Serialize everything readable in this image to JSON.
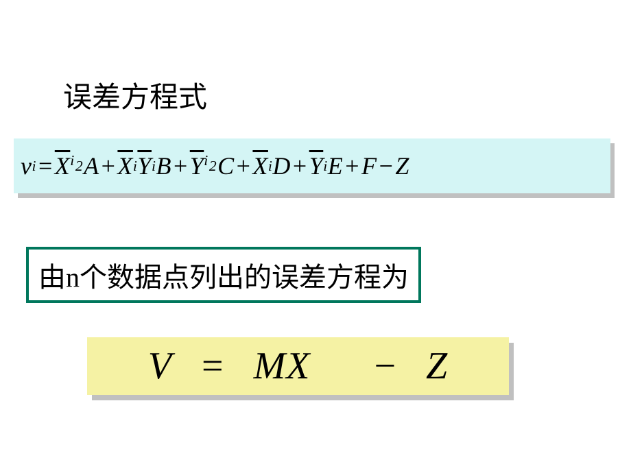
{
  "title": "误差方程式",
  "eq1": {
    "box_bg": "#d4f5f5",
    "shadow": "#c0c0c0",
    "fontsize": 36,
    "lhs_var": "v",
    "lhs_sub": "i",
    "t1_var": "X",
    "t1_sub": "i",
    "t1_sup": "2",
    "t1_coef": "A",
    "t2_var1": "X",
    "t2_sub1": "i",
    "t2_var2": "Y",
    "t2_sub2": "i",
    "t2_coef": "B",
    "t3_var": "Y",
    "t3_sub": "i",
    "t3_sup": "2",
    "t3_coef": "C",
    "t4_var": "X",
    "t4_sub": "i",
    "t4_coef": "D",
    "t5_var": "Y",
    "t5_sub": "i",
    "t5_coef": "E",
    "t6_coef": "F",
    "t7_var": "Z"
  },
  "desc": {
    "border_color": "#00775c",
    "prefix": "由",
    "n": "n",
    "suffix": "个数据点列出的误差方程为"
  },
  "eq2": {
    "box_bg": "#f5f2a4",
    "shadow": "#c0c0c0",
    "fontsize": 56,
    "V": "V",
    "eq": "=",
    "MX": "MX",
    "minus": "−",
    "Z": "Z"
  }
}
